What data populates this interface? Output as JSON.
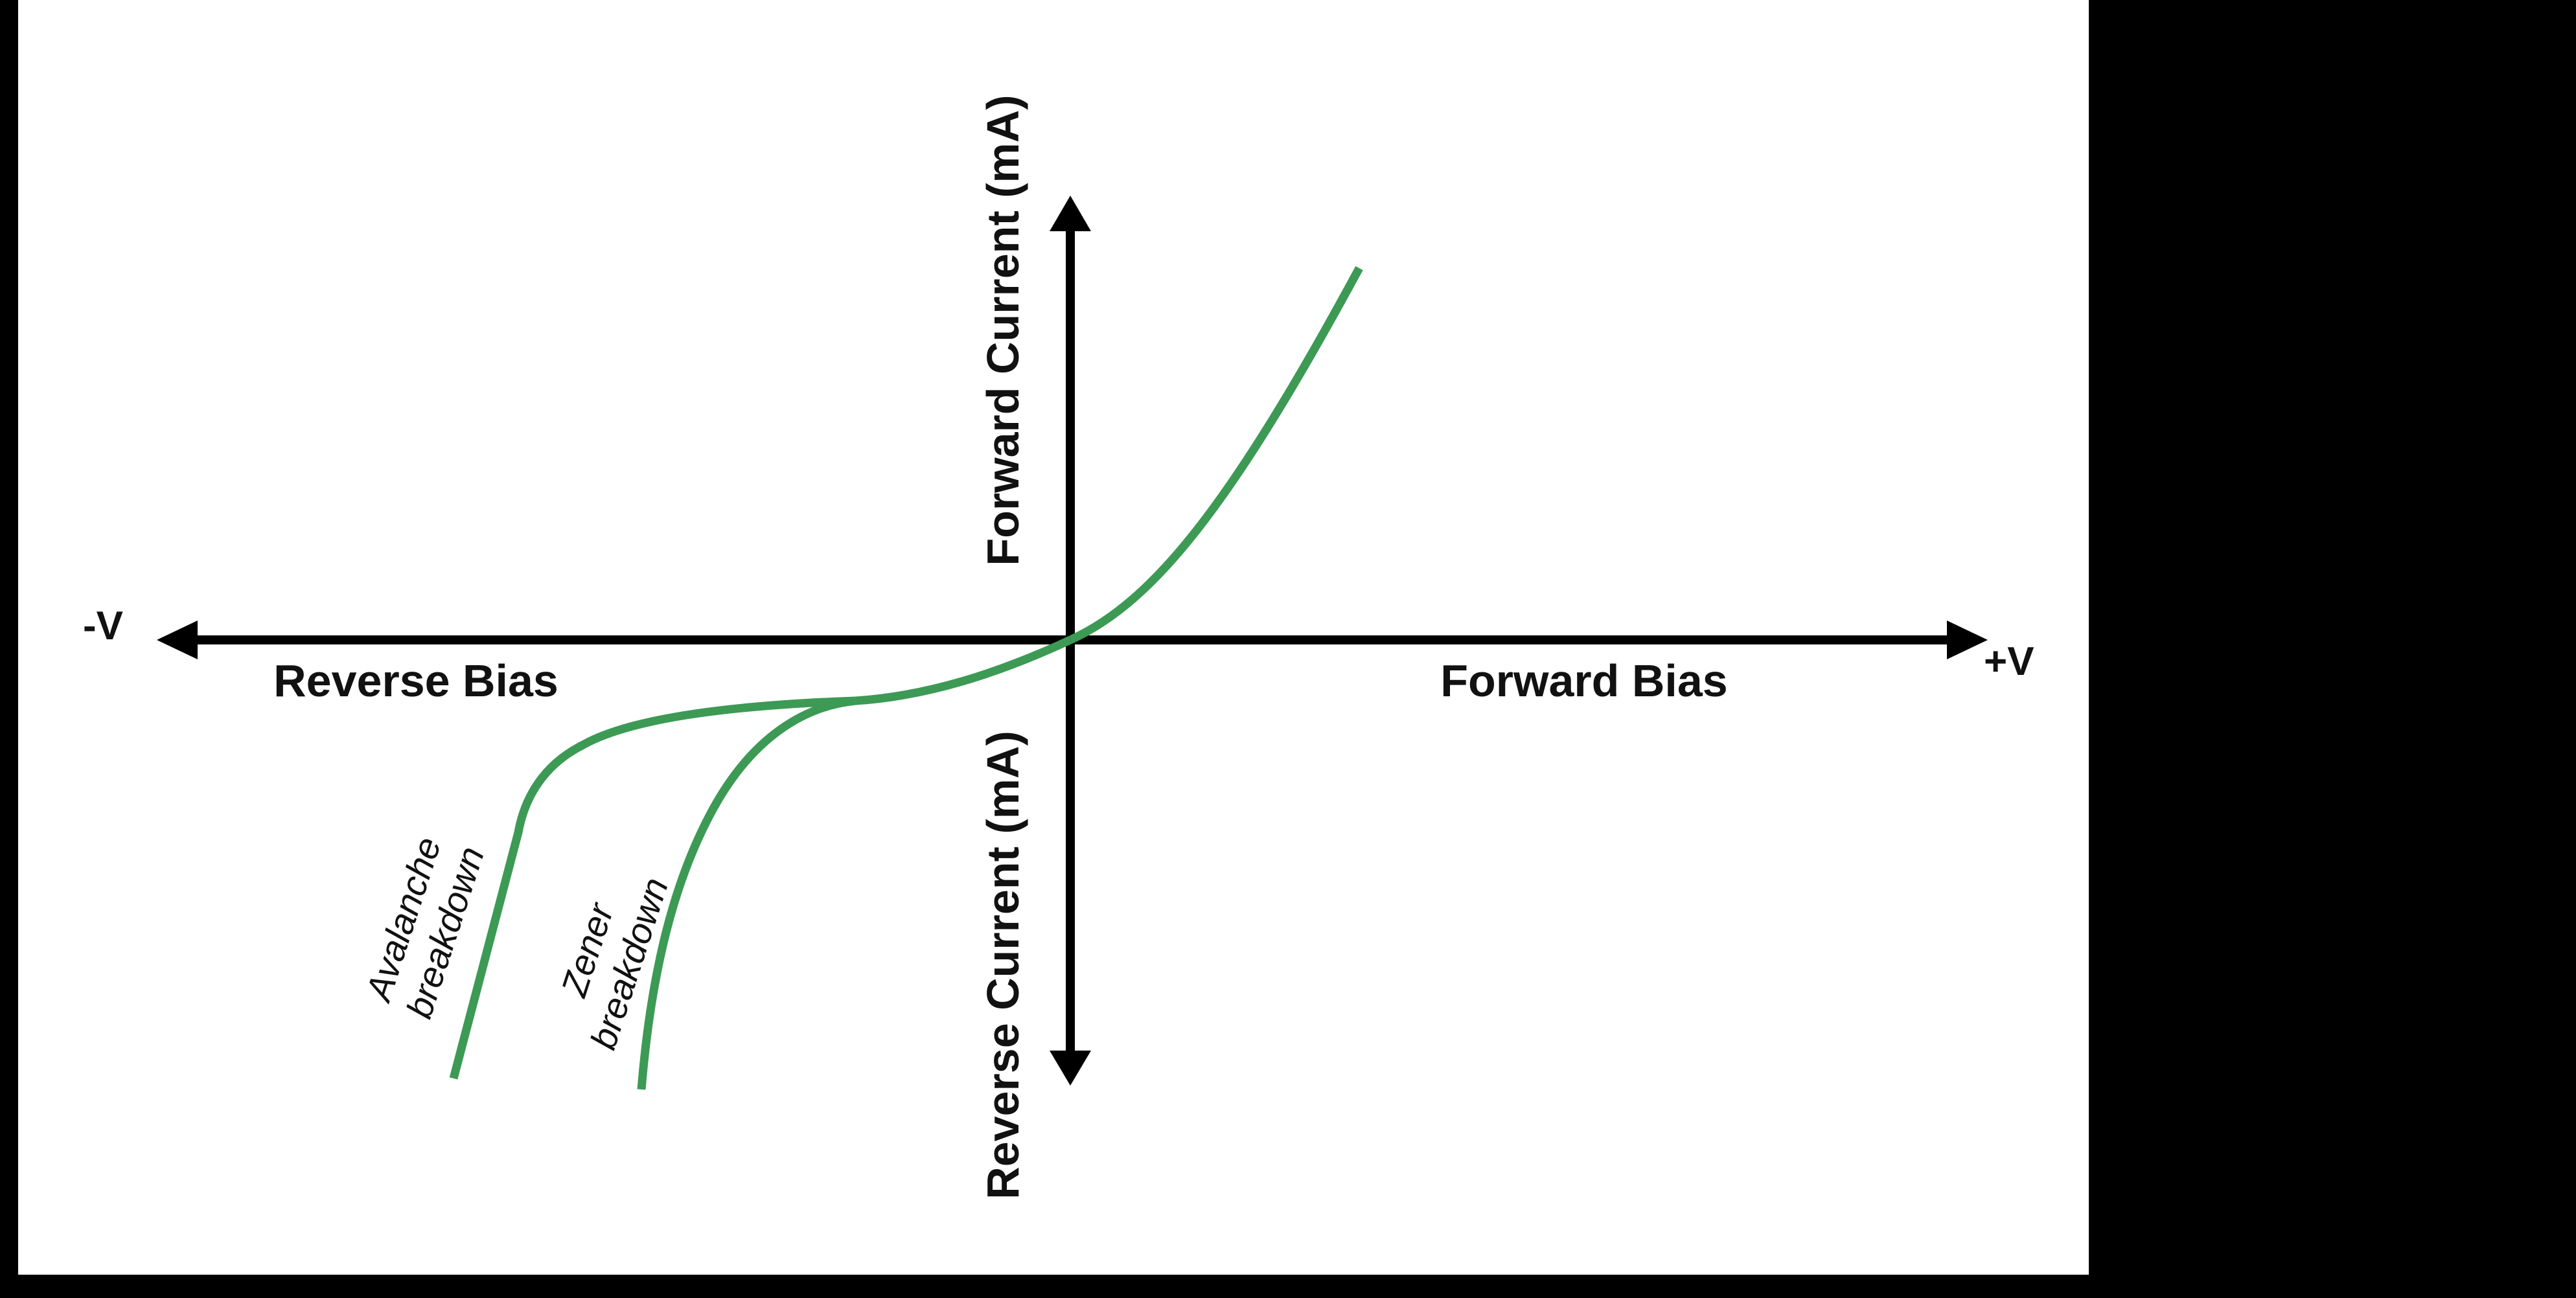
{
  "colors": {
    "background": "#000000",
    "panel": "#ffffff",
    "axis": "#000000",
    "curve": "#3c9a55",
    "text": "#111111"
  },
  "labels": {
    "neg_v": "-V",
    "pos_v": "+V",
    "reverse_bias": "Reverse Bias",
    "forward_bias": "Forward Bias",
    "forward_current": "Forward Current (mA)",
    "reverse_current": "Reverse Current (mA)",
    "avalanche_line1": "Avalanche",
    "avalanche_line2": "breakdown",
    "zener_line1": "Zener",
    "zener_line2": "breakdown"
  }
}
